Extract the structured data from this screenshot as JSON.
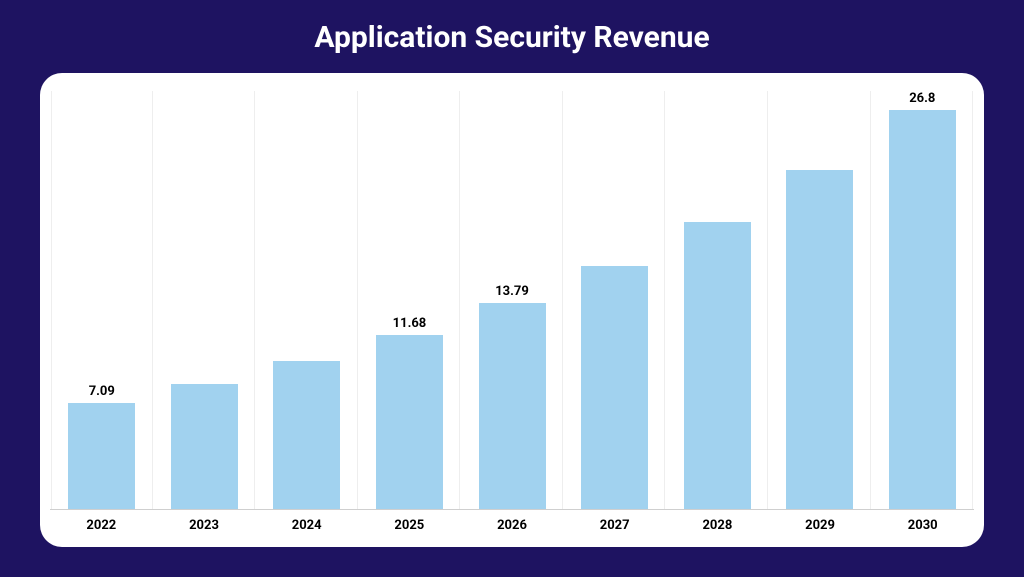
{
  "page": {
    "background_color": "#1e1361"
  },
  "chart": {
    "type": "bar",
    "title": "Application Security Revenue",
    "title_color": "#ffffff",
    "title_fontsize": 30,
    "title_fontweight": 700,
    "card_background": "#ffffff",
    "card_border_radius": 22,
    "grid_color": "#eeeeee",
    "axis_line_color": "#cfcfcf",
    "bar_color": "#a1d2ef",
    "bar_width_ratio": 0.66,
    "label_color": "#000000",
    "xaxis_fontsize": 13,
    "value_fontsize": 13,
    "ylim": [
      0,
      28
    ],
    "categories": [
      "2022",
      "2023",
      "2024",
      "2025",
      "2026",
      "2027",
      "2028",
      "2029",
      "2030"
    ],
    "values": [
      7.09,
      8.37,
      9.89,
      11.68,
      13.79,
      16.28,
      19.23,
      22.7,
      26.8
    ],
    "value_labels": [
      "7.09",
      "",
      "",
      "11.68",
      "13.79",
      "",
      "",
      "",
      "26.8"
    ]
  }
}
